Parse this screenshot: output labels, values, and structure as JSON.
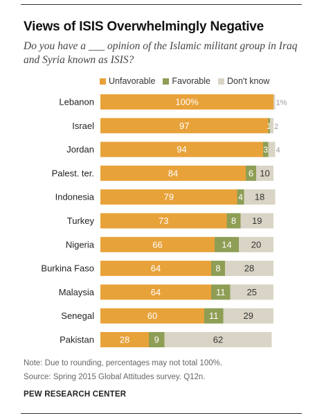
{
  "title": "Views of ISIS Overwhelmingly Negative",
  "subtitle": "Do you have a ___ opinion of the Islamic militant group in Iraq and Syria known as ISIS?",
  "note": "Note: Due to rounding, percentages may not total 100%.",
  "source": "Source: Spring 2015 Global Attitudes survey. Q12n.",
  "organization": "PEW RESEARCH CENTER",
  "colors": {
    "unfavorable": "#E8A23A",
    "favorable": "#8E9E55",
    "dont_know": "#D9D4C5"
  },
  "chart_data": {
    "type": "bar",
    "orientation": "horizontal",
    "stacked": true,
    "categories": [
      "Lebanon",
      "Israel",
      "Jordan",
      "Palest. ter.",
      "Indonesia",
      "Turkey",
      "Nigeria",
      "Burkina Faso",
      "Malaysia",
      "Senegal",
      "Pakistan"
    ],
    "series": [
      {
        "name": "Unfavorable",
        "values": [
          100,
          97,
          94,
          84,
          79,
          73,
          66,
          64,
          64,
          60,
          28
        ]
      },
      {
        "name": "Favorable",
        "values": [
          0,
          1,
          3,
          6,
          4,
          8,
          14,
          8,
          11,
          11,
          9
        ]
      },
      {
        "name": "Don't know",
        "values": [
          1,
          2,
          4,
          10,
          18,
          19,
          20,
          28,
          25,
          29,
          62
        ]
      }
    ],
    "labels": [
      [
        "100%",
        "",
        "1%"
      ],
      [
        "97",
        "1",
        "2"
      ],
      [
        "94",
        "3",
        "4"
      ],
      [
        "84",
        "6",
        "10"
      ],
      [
        "79",
        "4",
        "18"
      ],
      [
        "73",
        "8",
        "19"
      ],
      [
        "66",
        "14",
        "20"
      ],
      [
        "64",
        "8",
        "28"
      ],
      [
        "64",
        "11",
        "25"
      ],
      [
        "60",
        "11",
        "29"
      ],
      [
        "28",
        "9",
        "62"
      ]
    ],
    "legend_position": "top",
    "xlim": [
      0,
      100
    ],
    "grid": false
  }
}
